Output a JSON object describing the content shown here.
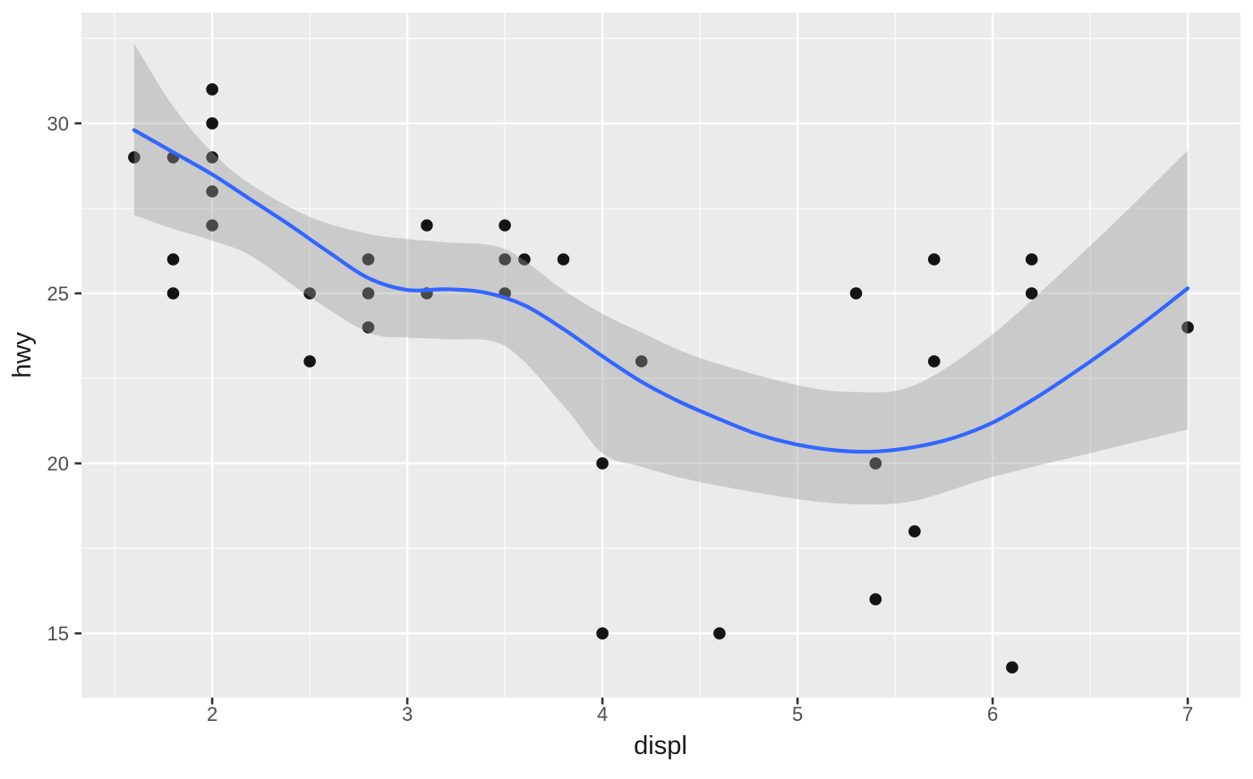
{
  "chart_data": {
    "type": "scatter",
    "title": "",
    "xlabel": "displ",
    "ylabel": "hwy",
    "legend": "none",
    "grid": true,
    "xlim": [
      1.33,
      7.27
    ],
    "ylim": [
      13.11,
      33.26
    ],
    "x_ticks": [
      2,
      3,
      4,
      5,
      6,
      7
    ],
    "y_ticks": [
      15,
      20,
      25,
      30
    ],
    "x_minor_ticks": [
      1.5,
      2.5,
      3.5,
      4.5,
      5.5,
      6.5
    ],
    "y_minor_ticks": [
      17.5,
      22.5,
      27.5,
      32.5
    ],
    "points": [
      [
        1.6,
        29
      ],
      [
        1.8,
        29
      ],
      [
        1.8,
        26
      ],
      [
        1.8,
        25
      ],
      [
        2.0,
        31
      ],
      [
        2.0,
        30
      ],
      [
        2.0,
        29
      ],
      [
        2.0,
        28
      ],
      [
        2.0,
        27
      ],
      [
        2.5,
        25
      ],
      [
        2.5,
        23
      ],
      [
        2.8,
        26
      ],
      [
        2.8,
        25
      ],
      [
        2.8,
        24
      ],
      [
        3.1,
        27
      ],
      [
        3.1,
        25
      ],
      [
        3.5,
        27
      ],
      [
        3.5,
        26
      ],
      [
        3.5,
        25
      ],
      [
        3.6,
        26
      ],
      [
        3.8,
        26
      ],
      [
        4.0,
        20
      ],
      [
        4.0,
        15
      ],
      [
        4.2,
        23
      ],
      [
        4.6,
        15
      ],
      [
        5.3,
        25
      ],
      [
        5.4,
        20
      ],
      [
        5.4,
        16
      ],
      [
        5.6,
        18
      ],
      [
        5.7,
        26
      ],
      [
        5.7,
        23
      ],
      [
        6.1,
        14
      ],
      [
        6.2,
        26
      ],
      [
        6.2,
        25
      ],
      [
        7.0,
        24
      ]
    ],
    "smooth_line": {
      "method": "loess",
      "x": [
        1.6,
        1.8,
        2.0,
        2.2,
        2.4,
        2.6,
        2.8,
        3.0,
        3.2,
        3.4,
        3.6,
        3.8,
        4.0,
        4.2,
        4.4,
        4.6,
        4.8,
        5.0,
        5.2,
        5.4,
        5.6,
        5.8,
        6.0,
        6.2,
        6.4,
        6.6,
        6.8,
        7.0
      ],
      "y": [
        29.8,
        29.15,
        28.5,
        27.75,
        27.0,
        26.2,
        25.45,
        25.1,
        25.12,
        25.02,
        24.65,
        23.95,
        23.15,
        22.4,
        21.8,
        21.3,
        20.85,
        20.55,
        20.38,
        20.35,
        20.48,
        20.75,
        21.2,
        21.85,
        22.6,
        23.4,
        24.25,
        25.15
      ]
    },
    "confidence_ribbon": {
      "x": [
        1.6,
        1.8,
        2.0,
        2.2,
        2.5,
        2.8,
        3.0,
        3.2,
        3.5,
        3.8,
        4.0,
        4.2,
        4.5,
        5.0,
        5.3,
        5.6,
        6.0,
        6.5,
        7.0
      ],
      "upper": [
        32.35,
        30.5,
        29.15,
        28.2,
        27.25,
        26.75,
        26.6,
        26.5,
        26.3,
        25.1,
        24.4,
        23.85,
        23.1,
        22.3,
        22.1,
        22.3,
        23.8,
        26.4,
        29.2
      ],
      "lower": [
        27.3,
        26.9,
        26.55,
        26.1,
        24.9,
        23.85,
        23.7,
        23.65,
        23.45,
        21.7,
        20.3,
        19.9,
        19.45,
        18.95,
        18.8,
        18.9,
        19.6,
        20.3,
        21.0
      ]
    },
    "colors": {
      "panel_background": "#EBEBEB",
      "gridline": "#FFFFFF",
      "point": "#141414",
      "smooth_line": "#3366FF",
      "ribbon_fill_rgba": "rgba(153,153,153,0.4)",
      "tick_label": "#4D4D4D",
      "axis_title": "#1A1A1A",
      "tick_mark": "#333333",
      "outer_background": "#FFFFFF"
    }
  }
}
